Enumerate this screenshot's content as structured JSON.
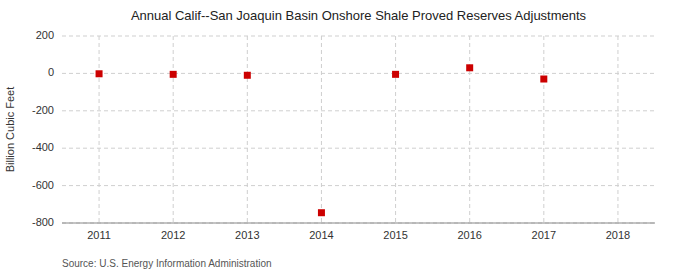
{
  "chart_data": {
    "type": "scatter",
    "title": "Annual Calif--San Joaquin Basin Onshore Shale Proved Reserves Adjustments",
    "y_label": "Billion Cubic Feet",
    "annotations": [
      "Source: U.S. Energy Information Administration"
    ],
    "x": [
      2011,
      2012,
      2013,
      2014,
      2015,
      2016,
      2017
    ],
    "values": [
      -2,
      -5,
      -10,
      -745,
      -5,
      30,
      -30
    ],
    "color": "#CC0000",
    "marker": "square",
    "xlim": [
      2010.5,
      2018.5
    ],
    "ylim": [
      -800,
      200
    ],
    "xticks": [
      2011,
      2012,
      2013,
      2014,
      2015,
      2016,
      2017,
      2018
    ],
    "yticks": [
      -800,
      -600,
      -400,
      -200,
      0,
      200
    ],
    "grid": true
  }
}
